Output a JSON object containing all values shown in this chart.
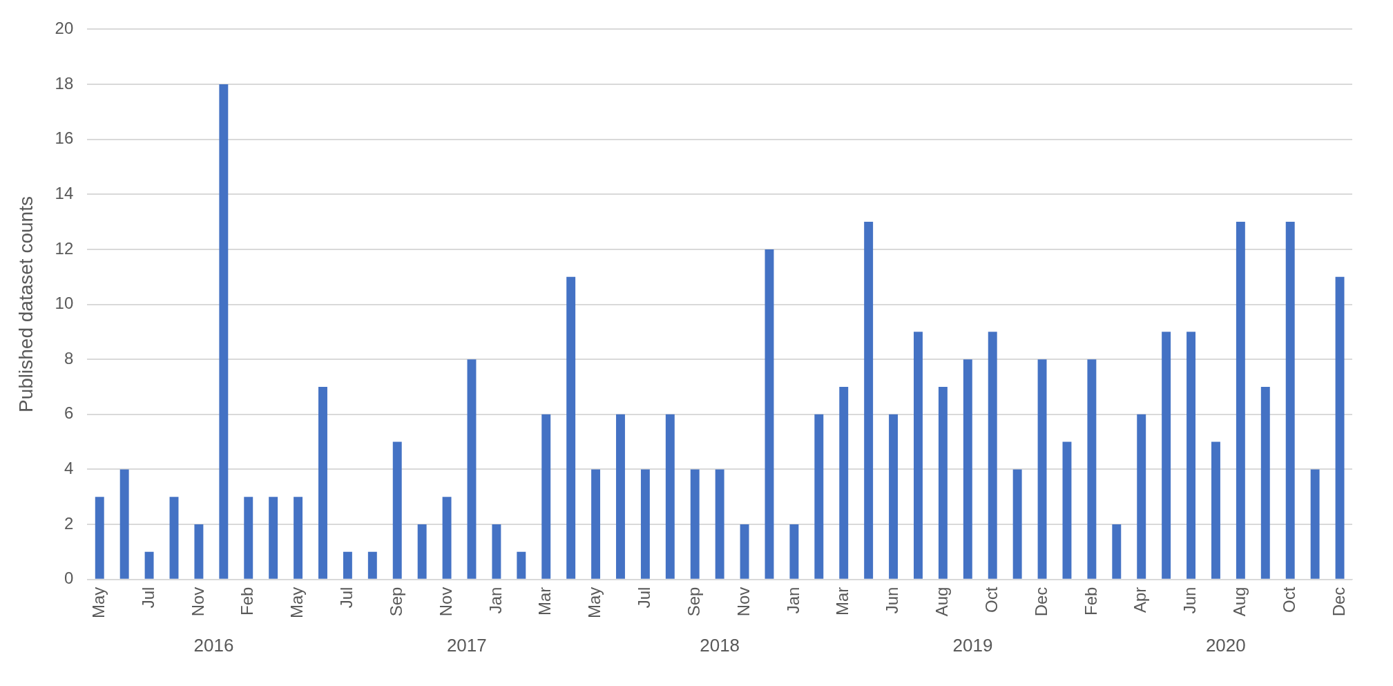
{
  "chart_data": {
    "type": "bar",
    "ylabel": "Published dataset counts",
    "categories": [
      "May",
      null,
      "Jul",
      null,
      "Nov",
      null,
      "Feb",
      null,
      "May",
      null,
      "Jul",
      null,
      "Sep",
      null,
      "Nov",
      null,
      "Jan",
      null,
      "Mar",
      null,
      "May",
      null,
      "Jul",
      null,
      "Sep",
      null,
      "Nov",
      null,
      "Jan",
      null,
      "Mar",
      null,
      "Jun",
      null,
      "Aug",
      null,
      "Oct",
      null,
      "Dec",
      null,
      "Feb",
      null,
      "Apr",
      null,
      "Jun",
      null,
      "Aug",
      null,
      "Oct",
      null,
      "Dec"
    ],
    "values": [
      3,
      4,
      1,
      3,
      2,
      18,
      3,
      3,
      3,
      7,
      1,
      1,
      5,
      2,
      3,
      8,
      2,
      1,
      6,
      11,
      4,
      6,
      4,
      6,
      4,
      4,
      2,
      12,
      2,
      6,
      7,
      13,
      6,
      9,
      7,
      8,
      9,
      4,
      8,
      5,
      8,
      2,
      6,
      9,
      9,
      5,
      13,
      7,
      13,
      4,
      11
    ],
    "color": "#4472c4",
    "ylim": [
      0,
      20
    ],
    "yticks": [
      0,
      2,
      4,
      6,
      8,
      10,
      12,
      14,
      16,
      18,
      20
    ],
    "grid": "y",
    "annotations": [
      "2016",
      "2017",
      "2018",
      "2019",
      "2020"
    ]
  }
}
